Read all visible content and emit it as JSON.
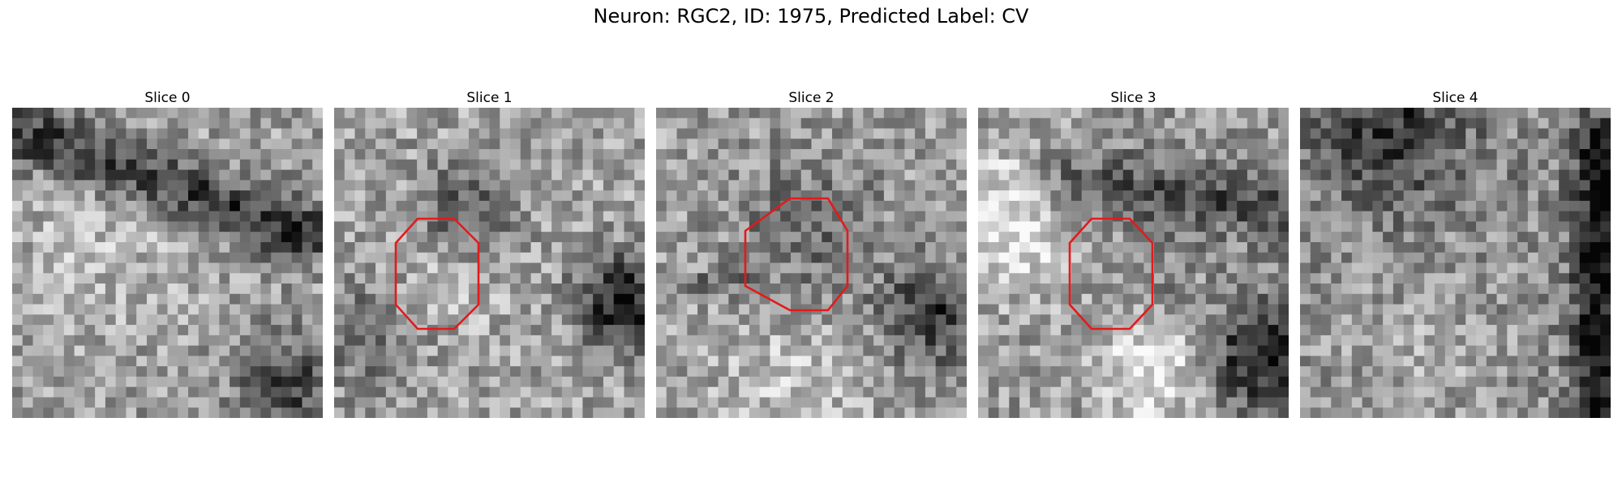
{
  "figure": {
    "title": "Neuron: RGC2, ID: 1975, Predicted Label: CV"
  },
  "slices": [
    {
      "label": "Slice 0",
      "seed": 11,
      "roi": false,
      "theme": "s0"
    },
    {
      "label": "Slice 1",
      "seed": 27,
      "roi": true,
      "theme": "s1"
    },
    {
      "label": "Slice 2",
      "seed": 43,
      "roi": true,
      "theme": "s2"
    },
    {
      "label": "Slice 3",
      "seed": 59,
      "roi": true,
      "theme": "s3"
    },
    {
      "label": "Slice 4",
      "seed": 71,
      "roi": false,
      "theme": "s4"
    }
  ],
  "colors": {
    "roi_outline": "#e31a1c"
  }
}
